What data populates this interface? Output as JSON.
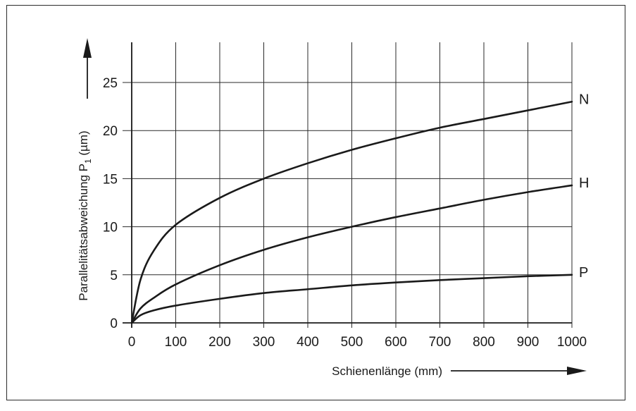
{
  "chart_data": {
    "type": "line",
    "xlabel": "Schienenlänge (mm)",
    "ylabel_parts": {
      "main": "Parallelitätsabweichung P",
      "sub": "1",
      "unit": " (µm)"
    },
    "xlim": [
      0,
      1000
    ],
    "ylim": [
      0,
      25
    ],
    "x_ticks": [
      "0",
      "100",
      "200",
      "300",
      "400",
      "500",
      "600",
      "700",
      "800",
      "900",
      "1000"
    ],
    "y_ticks": [
      "0",
      "5",
      "10",
      "15",
      "20",
      "25"
    ],
    "grid": true,
    "series": [
      {
        "name": "N",
        "x": [
          0,
          20,
          50,
          100,
          200,
          300,
          400,
          500,
          600,
          700,
          800,
          900,
          1000
        ],
        "y": [
          0,
          4.5,
          7.5,
          10.2,
          13.0,
          15.0,
          16.6,
          18.0,
          19.2,
          20.3,
          21.2,
          22.1,
          23.0
        ]
      },
      {
        "name": "H",
        "x": [
          0,
          20,
          50,
          100,
          200,
          300,
          400,
          500,
          600,
          700,
          800,
          900,
          1000
        ],
        "y": [
          0,
          1.5,
          2.6,
          4.0,
          6.0,
          7.6,
          8.9,
          10.0,
          11.0,
          11.9,
          12.8,
          13.6,
          14.3
        ]
      },
      {
        "name": "P",
        "x": [
          0,
          20,
          50,
          100,
          200,
          300,
          400,
          500,
          600,
          700,
          800,
          900,
          1000
        ],
        "y": [
          0,
          0.8,
          1.3,
          1.8,
          2.5,
          3.1,
          3.5,
          3.9,
          4.2,
          4.45,
          4.65,
          4.85,
          5.0
        ]
      }
    ]
  }
}
